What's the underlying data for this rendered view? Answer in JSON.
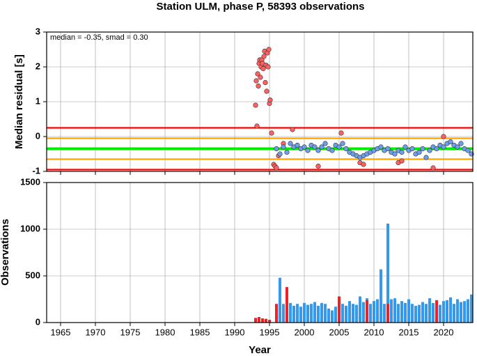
{
  "chart_data": [
    {
      "type": "scatter",
      "title": "Station ULM, phase P, 58393 observations",
      "ylabel": "Median residual [s]",
      "annotation": "median = -0.35, smad = 0.30",
      "xlim": [
        1963,
        2024.2
      ],
      "xticks": [
        1965,
        1970,
        1975,
        1980,
        1985,
        1990,
        1995,
        2000,
        2005,
        2010,
        2015,
        2020
      ],
      "ylim": [
        -1,
        3
      ],
      "yticks": [
        -1,
        0,
        1,
        2,
        3
      ],
      "grid": true,
      "reference_lines": [
        {
          "value": 0.25,
          "color": "#ff0000"
        },
        {
          "value": -0.95,
          "color": "#ff0000"
        },
        {
          "value": -0.05,
          "color": "#ffa500"
        },
        {
          "value": -0.65,
          "color": "#ffa500"
        },
        {
          "value": -0.35,
          "color": "#00ee00"
        }
      ],
      "series": [
        {
          "color": "#ff6060",
          "x": [
            1993.0,
            1993.1,
            1993.2,
            1993.3,
            1993.4,
            1993.5,
            1993.6,
            1993.7,
            1993.8,
            1993.9,
            1994.0,
            1994.1,
            1994.2,
            1994.3,
            1994.4,
            1994.5,
            1994.6,
            1994.7,
            1994.8,
            1994.9,
            1995.0,
            1995.1,
            1995.3,
            1995.6,
            1995.8,
            1996.0,
            1996.3,
            1997.0,
            1998.3,
            2005.3,
            2008.0,
            2008.5,
            2013.5,
            2014.0,
            2018.5,
            2020.0,
            2002.0
          ],
          "values": [
            0.9,
            1.6,
            0.3,
            1.8,
            1.45,
            2.1,
            2.2,
            1.7,
            2.0,
            2.2,
            2.1,
            1.95,
            2.3,
            2.45,
            1.55,
            2.05,
            1.3,
            2.4,
            2.0,
            2.5,
            0.95,
            1.05,
            0.1,
            -0.8,
            -0.85,
            -0.9,
            -0.55,
            -0.2,
            0.2,
            0.1,
            -0.75,
            -0.8,
            -0.75,
            -0.7,
            -0.9,
            0.0,
            -0.85
          ]
        },
        {
          "color": "#6d9eeb",
          "x": [
            1996,
            1996.5,
            1997,
            1997.5,
            1998,
            1998.5,
            1999,
            1999.5,
            2000,
            2000.5,
            2001,
            2001.5,
            2002,
            2002.5,
            2003,
            2003.5,
            2004,
            2004.5,
            2005,
            2005.5,
            2006,
            2006.5,
            2007,
            2007.5,
            2008,
            2008.5,
            2009,
            2009.5,
            2010,
            2010.5,
            2011,
            2011.5,
            2012,
            2012.5,
            2013,
            2013.5,
            2014,
            2014.5,
            2015,
            2015.5,
            2016,
            2016.5,
            2017,
            2017.5,
            2018,
            2018.5,
            2019,
            2019.5,
            2020,
            2020.5,
            2021,
            2021.5,
            2022,
            2022.5,
            2023,
            2023.5,
            2024
          ],
          "values": [
            -0.35,
            -0.5,
            -0.3,
            -0.45,
            -0.2,
            -0.3,
            -0.25,
            -0.35,
            -0.3,
            -0.4,
            -0.25,
            -0.3,
            -0.4,
            -0.3,
            -0.2,
            -0.35,
            -0.4,
            -0.25,
            -0.3,
            -0.2,
            -0.35,
            -0.45,
            -0.5,
            -0.55,
            -0.6,
            -0.55,
            -0.5,
            -0.45,
            -0.4,
            -0.35,
            -0.3,
            -0.4,
            -0.35,
            -0.45,
            -0.5,
            -0.4,
            -0.45,
            -0.3,
            -0.4,
            -0.35,
            -0.5,
            -0.45,
            -0.35,
            -0.6,
            -0.4,
            -0.3,
            -0.35,
            -0.25,
            -0.3,
            -0.2,
            -0.15,
            -0.25,
            -0.3,
            -0.2,
            -0.35,
            -0.4,
            -0.5
          ]
        }
      ]
    },
    {
      "type": "bar",
      "ylabel": "Observations",
      "xlabel": "Year",
      "xlim": [
        1963,
        2024.2
      ],
      "xticks": [
        1965,
        1970,
        1975,
        1980,
        1985,
        1990,
        1995,
        2000,
        2005,
        2010,
        2015,
        2020
      ],
      "ylim": [
        0,
        1500
      ],
      "yticks": [
        0,
        500,
        1000,
        1500
      ],
      "grid": true,
      "series": [
        {
          "color": "#3399ee",
          "x": [
            1996,
            1996.5,
            1997,
            1997.5,
            1998,
            1998.5,
            1999,
            1999.5,
            2000,
            2000.5,
            2001,
            2001.5,
            2002,
            2002.5,
            2003,
            2003.5,
            2004,
            2004.5,
            2005,
            2005.5,
            2006,
            2006.5,
            2007,
            2007.5,
            2008,
            2008.5,
            2009,
            2009.5,
            2010,
            2010.5,
            2011,
            2011.5,
            2012,
            2012.5,
            2013,
            2013.5,
            2014,
            2014.5,
            2015,
            2015.5,
            2016,
            2016.5,
            2017,
            2017.5,
            2018,
            2018.5,
            2019,
            2019.5,
            2020,
            2020.5,
            2021,
            2021.5,
            2022,
            2022.5,
            2023,
            2023.5,
            2024
          ],
          "values": [
            180,
            480,
            200,
            190,
            210,
            180,
            200,
            170,
            210,
            190,
            200,
            220,
            180,
            210,
            200,
            150,
            130,
            170,
            190,
            200,
            180,
            230,
            200,
            190,
            280,
            220,
            260,
            200,
            230,
            250,
            570,
            200,
            1060,
            250,
            260,
            200,
            230,
            210,
            250,
            200,
            180,
            190,
            220,
            200,
            260,
            210,
            200,
            190,
            230,
            240,
            270,
            200,
            250,
            220,
            230,
            250,
            300
          ]
        },
        {
          "color": "#ee2222",
          "x": [
            1993,
            1993.5,
            1994,
            1994.5,
            1995,
            1996,
            1997.5,
            2005,
            2009,
            2012,
            2019
          ],
          "values": [
            50,
            60,
            45,
            40,
            30,
            200,
            380,
            280,
            240,
            200,
            240
          ]
        }
      ]
    }
  ]
}
